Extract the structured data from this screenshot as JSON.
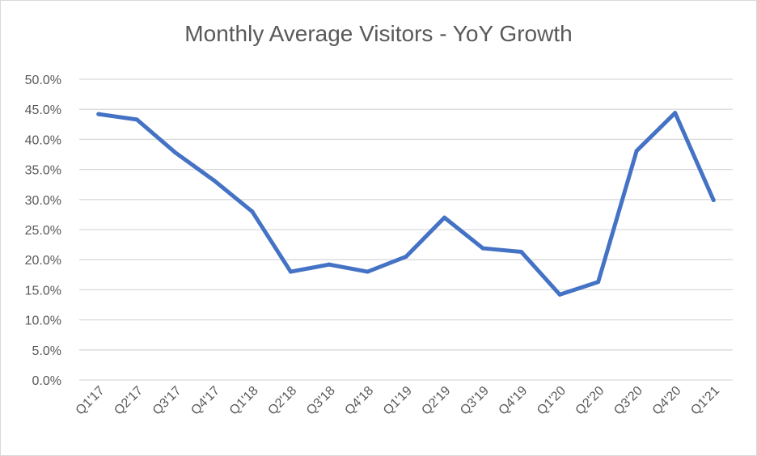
{
  "chart_data": {
    "type": "line",
    "title": "Monthly Average Visitors - YoY Growth",
    "xlabel": "",
    "ylabel": "",
    "categories": [
      "Q1'17",
      "Q2'17",
      "Q3'17",
      "Q4'17",
      "Q1'18",
      "Q2'18",
      "Q3'18",
      "Q4'18",
      "Q1'19",
      "Q2'19",
      "Q3'19",
      "Q4'19",
      "Q1'20",
      "Q2'20",
      "Q3'20",
      "Q4'20",
      "Q1'21"
    ],
    "series": [
      {
        "values": [
          44.2,
          43.3,
          37.8,
          33.2,
          28.0,
          18.0,
          19.2,
          18.0,
          20.5,
          27.0,
          21.9,
          21.3,
          14.2,
          16.3,
          38.1,
          44.4,
          29.9
        ],
        "color": "#4472c4"
      }
    ],
    "ylim": [
      0,
      50
    ],
    "y_ticks": [
      "0.0%",
      "5.0%",
      "10.0%",
      "15.0%",
      "20.0%",
      "25.0%",
      "30.0%",
      "35.0%",
      "40.0%",
      "45.0%",
      "50.0%"
    ],
    "grid": true,
    "legend": "none",
    "gridline_color": "#d9d9d9",
    "axis_text_color": "#595959"
  }
}
